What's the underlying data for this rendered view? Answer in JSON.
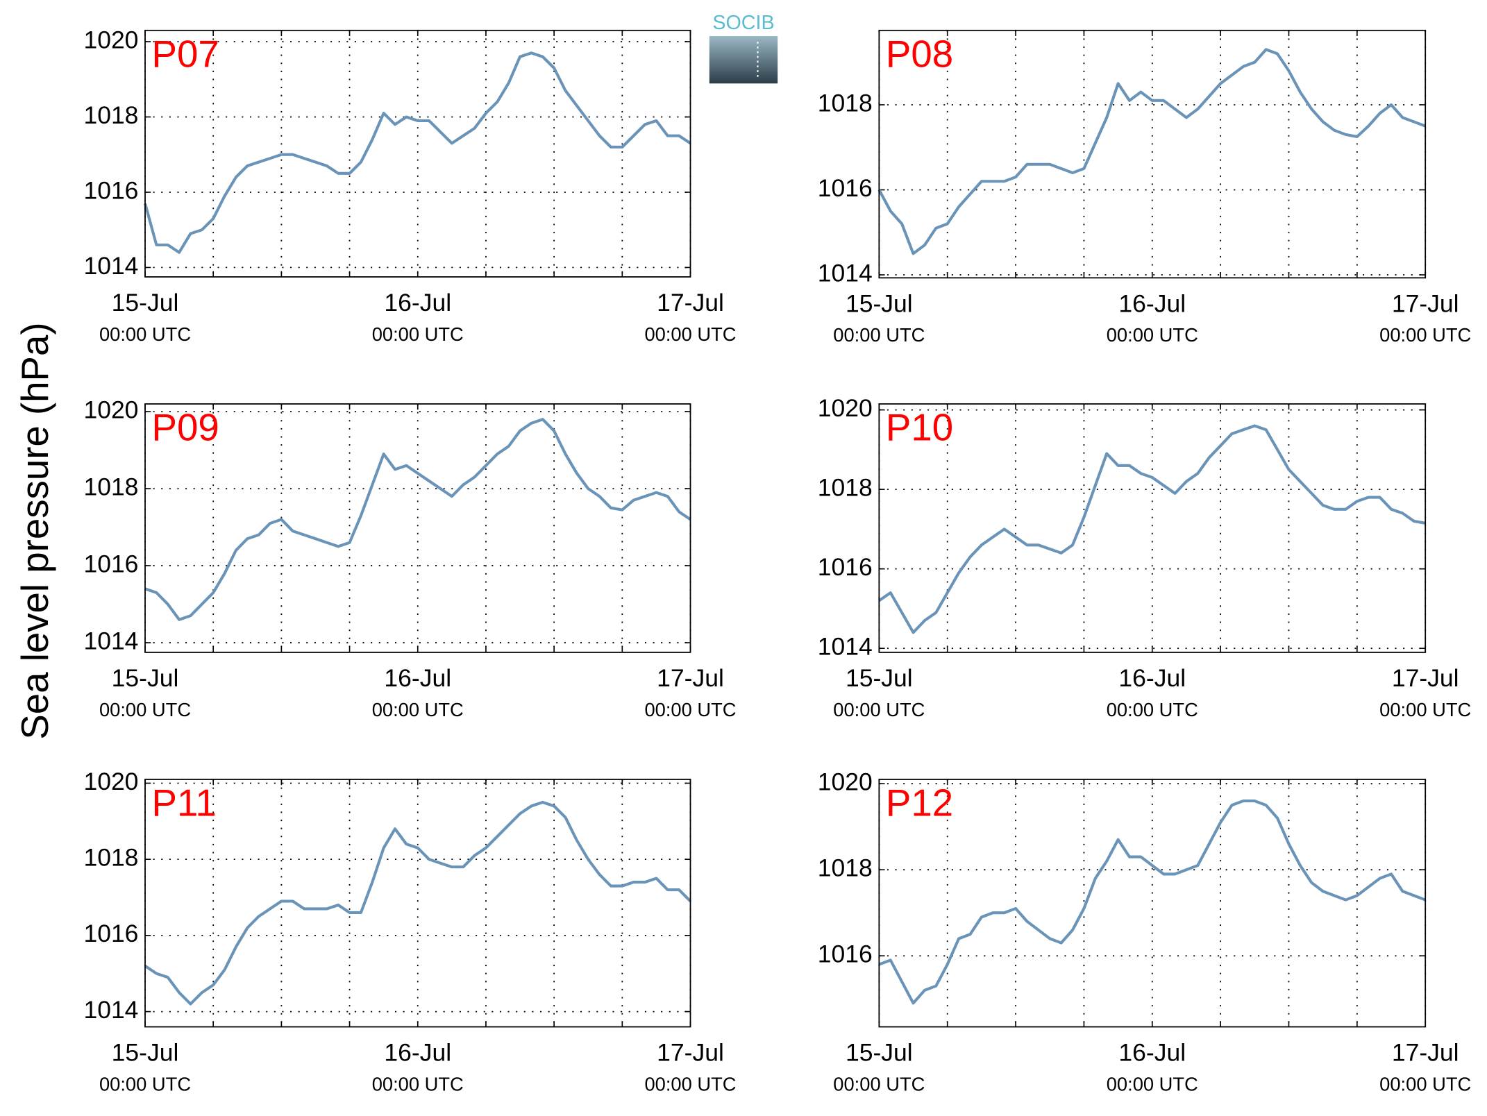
{
  "figure": {
    "ylabel": "Sea level pressure (hPa)",
    "logo": "SOCIB"
  },
  "chart_data": [
    {
      "type": "line",
      "title": "P07",
      "title_color": "#ff0000",
      "color": "#6a93b8",
      "grid": true,
      "x": [
        0,
        1,
        2,
        3,
        4,
        5,
        6,
        7,
        8,
        9,
        10,
        11,
        12,
        13,
        14,
        15,
        16,
        17,
        18,
        19,
        20,
        21,
        22,
        23,
        24,
        25,
        26,
        27,
        28,
        29,
        30,
        31,
        32,
        33,
        34,
        35,
        36,
        37,
        38,
        39,
        40,
        41,
        42,
        43,
        44,
        45,
        46,
        47,
        48
      ],
      "values": [
        1015.7,
        1014.6,
        1014.6,
        1014.4,
        1014.9,
        1015.0,
        1015.3,
        1015.9,
        1016.4,
        1016.7,
        1016.8,
        1016.9,
        1017.0,
        1017.0,
        1016.9,
        1016.8,
        1016.7,
        1016.5,
        1016.5,
        1016.8,
        1017.4,
        1018.1,
        1017.8,
        1018.0,
        1017.9,
        1017.9,
        1017.6,
        1017.3,
        1017.5,
        1017.7,
        1018.1,
        1018.4,
        1018.9,
        1019.6,
        1019.7,
        1019.6,
        1019.3,
        1018.7,
        1018.3,
        1017.9,
        1017.5,
        1017.2,
        1017.2,
        1017.5,
        1017.8,
        1017.9,
        1017.5,
        1017.5,
        1017.3
      ],
      "xlim": [
        0,
        48
      ],
      "ylim": [
        1013.75,
        1020.3
      ],
      "xticks": [
        {
          "value": 0,
          "label": "15-Jul",
          "time": "00:00 UTC"
        },
        {
          "value": 6,
          "label": null
        },
        {
          "value": 12,
          "label": null
        },
        {
          "value": 18,
          "label": null
        },
        {
          "value": 24,
          "label": "16-Jul",
          "time": "00:00 UTC"
        },
        {
          "value": 30,
          "label": null
        },
        {
          "value": 36,
          "label": null
        },
        {
          "value": 42,
          "label": null
        },
        {
          "value": 48,
          "label": "17-Jul",
          "time": "00:00 UTC"
        }
      ],
      "yticks": [
        1014,
        1016,
        1018,
        1020
      ]
    },
    {
      "type": "line",
      "title": "P08",
      "title_color": "#ff0000",
      "color": "#6a93b8",
      "grid": true,
      "x": [
        0,
        1,
        2,
        3,
        4,
        5,
        6,
        7,
        8,
        9,
        10,
        11,
        12,
        13,
        14,
        15,
        16,
        17,
        18,
        19,
        20,
        21,
        22,
        23,
        24,
        25,
        26,
        27,
        28,
        29,
        30,
        31,
        32,
        33,
        34,
        35,
        36,
        37,
        38,
        39,
        40,
        41,
        42,
        43,
        44,
        45,
        46,
        47,
        48
      ],
      "values": [
        1016.0,
        1015.5,
        1015.2,
        1014.5,
        1014.7,
        1015.1,
        1015.2,
        1015.6,
        1015.9,
        1016.2,
        1016.2,
        1016.2,
        1016.3,
        1016.6,
        1016.6,
        1016.6,
        1016.5,
        1016.4,
        1016.5,
        1017.1,
        1017.7,
        1018.5,
        1018.1,
        1018.3,
        1018.1,
        1018.1,
        1017.9,
        1017.7,
        1017.9,
        1018.2,
        1018.5,
        1018.7,
        1018.9,
        1019.0,
        1019.3,
        1019.2,
        1018.8,
        1018.3,
        1017.9,
        1017.6,
        1017.4,
        1017.3,
        1017.25,
        1017.5,
        1017.8,
        1018.0,
        1017.7,
        1017.6,
        1017.5
      ],
      "xlim": [
        0,
        48
      ],
      "ylim": [
        1013.93,
        1019.75
      ],
      "xticks": [
        {
          "value": 0,
          "label": "15-Jul",
          "time": "00:00 UTC"
        },
        {
          "value": 6,
          "label": null
        },
        {
          "value": 12,
          "label": null
        },
        {
          "value": 18,
          "label": null
        },
        {
          "value": 24,
          "label": "16-Jul",
          "time": "00:00 UTC"
        },
        {
          "value": 30,
          "label": null
        },
        {
          "value": 36,
          "label": null
        },
        {
          "value": 42,
          "label": null
        },
        {
          "value": 48,
          "label": "17-Jul",
          "time": "00:00 UTC"
        }
      ],
      "yticks": [
        1014,
        1016,
        1018
      ]
    },
    {
      "type": "line",
      "title": "P09",
      "title_color": "#ff0000",
      "color": "#6a93b8",
      "grid": true,
      "x": [
        0,
        1,
        2,
        3,
        4,
        5,
        6,
        7,
        8,
        9,
        10,
        11,
        12,
        13,
        14,
        15,
        16,
        17,
        18,
        19,
        20,
        21,
        22,
        23,
        24,
        25,
        26,
        27,
        28,
        29,
        30,
        31,
        32,
        33,
        34,
        35,
        36,
        37,
        38,
        39,
        40,
        41,
        42,
        43,
        44,
        45,
        46,
        47,
        48
      ],
      "values": [
        1015.4,
        1015.3,
        1015.0,
        1014.6,
        1014.7,
        1015.0,
        1015.3,
        1015.8,
        1016.4,
        1016.7,
        1016.8,
        1017.1,
        1017.2,
        1016.9,
        1016.8,
        1016.7,
        1016.6,
        1016.5,
        1016.6,
        1017.3,
        1018.1,
        1018.9,
        1018.5,
        1018.6,
        1018.4,
        1018.2,
        1018.0,
        1017.8,
        1018.1,
        1018.3,
        1018.6,
        1018.9,
        1019.1,
        1019.5,
        1019.7,
        1019.8,
        1019.5,
        1018.9,
        1018.4,
        1018.0,
        1017.8,
        1017.5,
        1017.45,
        1017.7,
        1017.8,
        1017.9,
        1017.8,
        1017.4,
        1017.2
      ],
      "xlim": [
        0,
        48
      ],
      "ylim": [
        1013.75,
        1020.2
      ],
      "xticks": [
        {
          "value": 0,
          "label": "15-Jul",
          "time": "00:00 UTC"
        },
        {
          "value": 6,
          "label": null
        },
        {
          "value": 12,
          "label": null
        },
        {
          "value": 18,
          "label": null
        },
        {
          "value": 24,
          "label": "16-Jul",
          "time": "00:00 UTC"
        },
        {
          "value": 30,
          "label": null
        },
        {
          "value": 36,
          "label": null
        },
        {
          "value": 42,
          "label": null
        },
        {
          "value": 48,
          "label": "17-Jul",
          "time": "00:00 UTC"
        }
      ],
      "yticks": [
        1014,
        1016,
        1018,
        1020
      ]
    },
    {
      "type": "line",
      "title": "P10",
      "title_color": "#ff0000",
      "color": "#6a93b8",
      "grid": true,
      "x": [
        0,
        1,
        2,
        3,
        4,
        5,
        6,
        7,
        8,
        9,
        10,
        11,
        12,
        13,
        14,
        15,
        16,
        17,
        18,
        19,
        20,
        21,
        22,
        23,
        24,
        25,
        26,
        27,
        28,
        29,
        30,
        31,
        32,
        33,
        34,
        35,
        36,
        37,
        38,
        39,
        40,
        41,
        42,
        43,
        44,
        45,
        46,
        47,
        48
      ],
      "values": [
        1015.2,
        1015.4,
        1014.9,
        1014.4,
        1014.7,
        1014.9,
        1015.4,
        1015.9,
        1016.3,
        1016.6,
        1016.8,
        1017.0,
        1016.8,
        1016.6,
        1016.6,
        1016.5,
        1016.4,
        1016.6,
        1017.3,
        1018.1,
        1018.9,
        1018.6,
        1018.6,
        1018.4,
        1018.3,
        1018.1,
        1017.9,
        1018.2,
        1018.4,
        1018.8,
        1019.1,
        1019.4,
        1019.5,
        1019.6,
        1019.5,
        1019.0,
        1018.5,
        1018.2,
        1017.9,
        1017.6,
        1017.5,
        1017.5,
        1017.7,
        1017.8,
        1017.8,
        1017.5,
        1017.4,
        1017.2,
        1017.15
      ],
      "xlim": [
        0,
        48
      ],
      "ylim": [
        1013.9,
        1020.15
      ],
      "xticks": [
        {
          "value": 0,
          "label": "15-Jul",
          "time": "00:00 UTC"
        },
        {
          "value": 6,
          "label": null
        },
        {
          "value": 12,
          "label": null
        },
        {
          "value": 18,
          "label": null
        },
        {
          "value": 24,
          "label": "16-Jul",
          "time": "00:00 UTC"
        },
        {
          "value": 30,
          "label": null
        },
        {
          "value": 36,
          "label": null
        },
        {
          "value": 42,
          "label": null
        },
        {
          "value": 48,
          "label": "17-Jul",
          "time": "00:00 UTC"
        }
      ],
      "yticks": [
        1014,
        1016,
        1018,
        1020
      ]
    },
    {
      "type": "line",
      "title": "P11",
      "title_color": "#ff0000",
      "color": "#6a93b8",
      "grid": true,
      "x": [
        0,
        1,
        2,
        3,
        4,
        5,
        6,
        7,
        8,
        9,
        10,
        11,
        12,
        13,
        14,
        15,
        16,
        17,
        18,
        19,
        20,
        21,
        22,
        23,
        24,
        25,
        26,
        27,
        28,
        29,
        30,
        31,
        32,
        33,
        34,
        35,
        36,
        37,
        38,
        39,
        40,
        41,
        42,
        43,
        44,
        45,
        46,
        47,
        48
      ],
      "values": [
        1015.2,
        1015.0,
        1014.9,
        1014.5,
        1014.2,
        1014.5,
        1014.7,
        1015.1,
        1015.7,
        1016.2,
        1016.5,
        1016.7,
        1016.9,
        1016.9,
        1016.7,
        1016.7,
        1016.7,
        1016.8,
        1016.6,
        1016.6,
        1017.4,
        1018.3,
        1018.8,
        1018.4,
        1018.3,
        1018.0,
        1017.9,
        1017.8,
        1017.8,
        1018.1,
        1018.3,
        1018.6,
        1018.9,
        1019.2,
        1019.4,
        1019.5,
        1019.4,
        1019.1,
        1018.5,
        1018.0,
        1017.6,
        1017.3,
        1017.3,
        1017.4,
        1017.4,
        1017.5,
        1017.2,
        1017.2,
        1016.9
      ],
      "xlim": [
        0,
        48
      ],
      "ylim": [
        1013.6,
        1020.1
      ],
      "xticks": [
        {
          "value": 0,
          "label": "15-Jul",
          "time": "00:00 UTC"
        },
        {
          "value": 6,
          "label": null
        },
        {
          "value": 12,
          "label": null
        },
        {
          "value": 18,
          "label": null
        },
        {
          "value": 24,
          "label": "16-Jul",
          "time": "00:00 UTC"
        },
        {
          "value": 30,
          "label": null
        },
        {
          "value": 36,
          "label": null
        },
        {
          "value": 42,
          "label": null
        },
        {
          "value": 48,
          "label": "17-Jul",
          "time": "00:00 UTC"
        }
      ],
      "yticks": [
        1014,
        1016,
        1018,
        1020
      ]
    },
    {
      "type": "line",
      "title": "P12",
      "title_color": "#ff0000",
      "color": "#6a93b8",
      "grid": true,
      "x": [
        0,
        1,
        2,
        3,
        4,
        5,
        6,
        7,
        8,
        9,
        10,
        11,
        12,
        13,
        14,
        15,
        16,
        17,
        18,
        19,
        20,
        21,
        22,
        23,
        24,
        25,
        26,
        27,
        28,
        29,
        30,
        31,
        32,
        33,
        34,
        35,
        36,
        37,
        38,
        39,
        40,
        41,
        42,
        43,
        44,
        45,
        46,
        47,
        48
      ],
      "values": [
        1015.8,
        1015.9,
        1015.4,
        1014.9,
        1015.2,
        1015.3,
        1015.8,
        1016.4,
        1016.5,
        1016.9,
        1017.0,
        1017.0,
        1017.1,
        1016.8,
        1016.6,
        1016.4,
        1016.3,
        1016.6,
        1017.1,
        1017.8,
        1018.2,
        1018.7,
        1018.3,
        1018.3,
        1018.1,
        1017.9,
        1017.9,
        1018.0,
        1018.1,
        1018.6,
        1019.1,
        1019.5,
        1019.6,
        1019.6,
        1019.5,
        1019.2,
        1018.6,
        1018.1,
        1017.7,
        1017.5,
        1017.4,
        1017.3,
        1017.4,
        1017.6,
        1017.8,
        1017.9,
        1017.5,
        1017.4,
        1017.3
      ],
      "xlim": [
        0,
        48
      ],
      "ylim": [
        1014.35,
        1020.1
      ],
      "xticks": [
        {
          "value": 0,
          "label": "15-Jul",
          "time": "00:00 UTC"
        },
        {
          "value": 6,
          "label": null
        },
        {
          "value": 12,
          "label": null
        },
        {
          "value": 18,
          "label": null
        },
        {
          "value": 24,
          "label": "16-Jul",
          "time": "00:00 UTC"
        },
        {
          "value": 30,
          "label": null
        },
        {
          "value": 36,
          "label": null
        },
        {
          "value": 42,
          "label": null
        },
        {
          "value": 48,
          "label": "17-Jul",
          "time": "00:00 UTC"
        }
      ],
      "yticks": [
        1016,
        1018,
        1020
      ]
    }
  ]
}
